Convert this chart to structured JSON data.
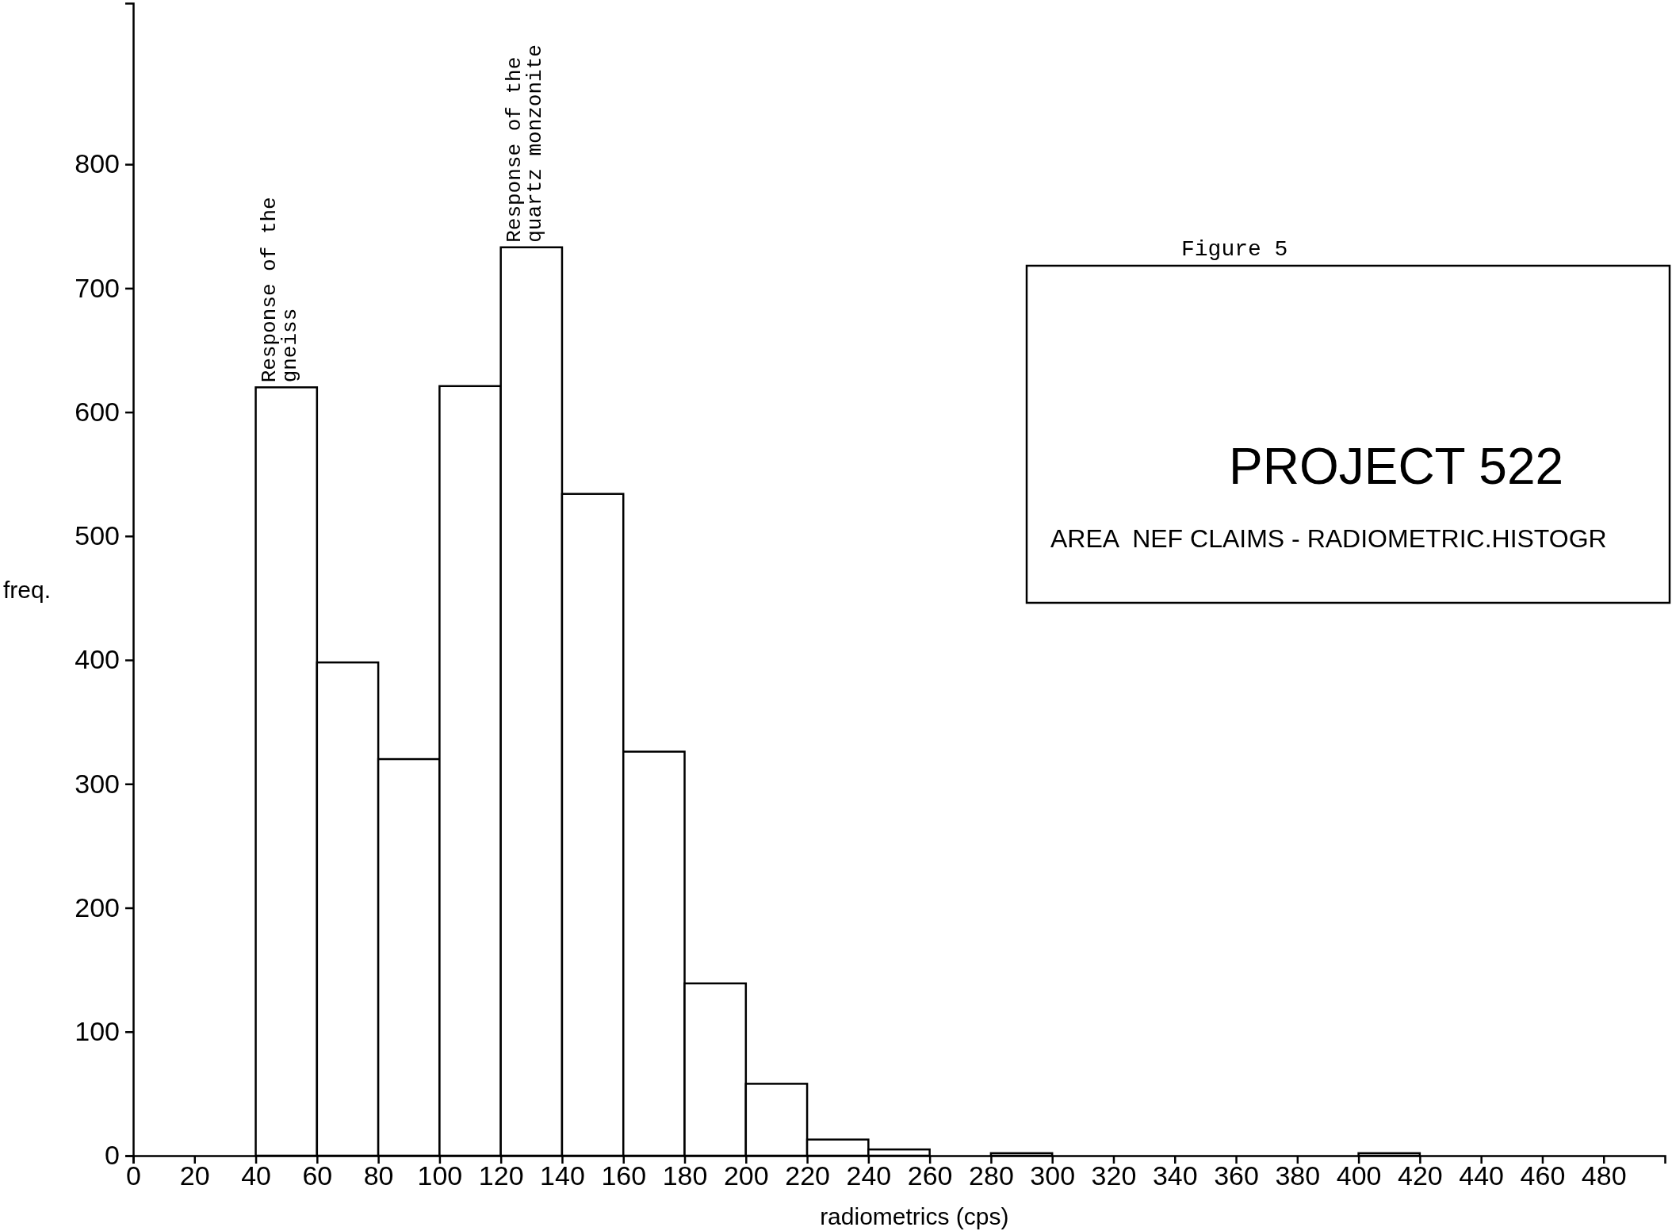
{
  "chart_data": {
    "type": "histogram",
    "xlabel": "radiometrics  (cps)",
    "ylabel": "freq.",
    "bins": [
      0,
      20,
      40,
      60,
      80,
      100,
      120,
      140,
      160,
      180,
      200,
      220,
      240,
      260,
      280,
      300,
      320,
      340,
      360,
      380,
      400,
      420,
      440,
      460,
      480,
      500
    ],
    "values": [
      0,
      0,
      620,
      398,
      320,
      621,
      733,
      534,
      326,
      139,
      58,
      13,
      5,
      null,
      2,
      null,
      null,
      null,
      null,
      0,
      2,
      0,
      null,
      0,
      0
    ],
    "color": "#ffffff",
    "xlim": [
      0,
      500
    ],
    "xticks": [
      0,
      20,
      40,
      60,
      80,
      100,
      120,
      140,
      160,
      180,
      200,
      220,
      240,
      260,
      280,
      300,
      320,
      340,
      360,
      380,
      400,
      420,
      440,
      460,
      480
    ],
    "ylim": [
      0,
      930
    ],
    "yticks": [
      0,
      100,
      200,
      300,
      400,
      500,
      600,
      700,
      800
    ],
    "grid": false,
    "annotations": [
      {
        "text": "Response of the\ngneiss",
        "x": 50,
        "y": 620
      },
      {
        "text": "Response of the\nquartz monzonite",
        "x": 130,
        "y": 733
      },
      "Figure 5",
      "PROJECT 522",
      "AREA  NEF CLAIMS - RADIOMETRIC.HISTOGR"
    ]
  }
}
